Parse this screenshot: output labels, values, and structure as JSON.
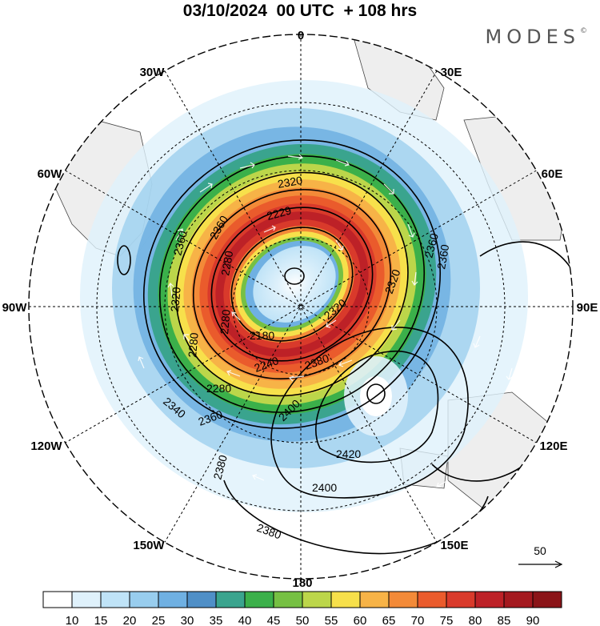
{
  "title": "03/10/2024  00 UTC  + 108 hrs",
  "brand": "MODES",
  "brand_mark": "©",
  "longitude_labels": {
    "top": "0",
    "top_left": "30W",
    "top_right": "30E",
    "upper_left": "60W",
    "upper_right": "60E",
    "left": "90W",
    "right": "90E",
    "lower_left": "120W",
    "lower_right": "120E",
    "bottom_left": "150W",
    "bottom_right": "150E",
    "bottom": "180"
  },
  "contour_labels": [
    "2320",
    "2360",
    "2229",
    "2360",
    "2280",
    "2320",
    "2360",
    "2320",
    "2280",
    "2180",
    "2280",
    "2240",
    "2320",
    "2380",
    "2280",
    "2360",
    "2400",
    "2340",
    "2380",
    "2420",
    "2400",
    "2380",
    "2360"
  ],
  "vector_reference": "50",
  "colorbar": {
    "labels": [
      "10",
      "15",
      "20",
      "25",
      "30",
      "35",
      "40",
      "45",
      "50",
      "55",
      "60",
      "65",
      "70",
      "75",
      "80",
      "85",
      "90"
    ],
    "colors": [
      "#ffffff",
      "#dff1fb",
      "#bfe3f7",
      "#98cdee",
      "#6fb0e2",
      "#4f8fc7",
      "#3aa48e",
      "#3bb04a",
      "#76c043",
      "#bcd64a",
      "#f7e04b",
      "#f7b347",
      "#f38a38",
      "#ea5b2c",
      "#d93a2b",
      "#bd2127",
      "#a4191f",
      "#8b1418"
    ]
  }
}
